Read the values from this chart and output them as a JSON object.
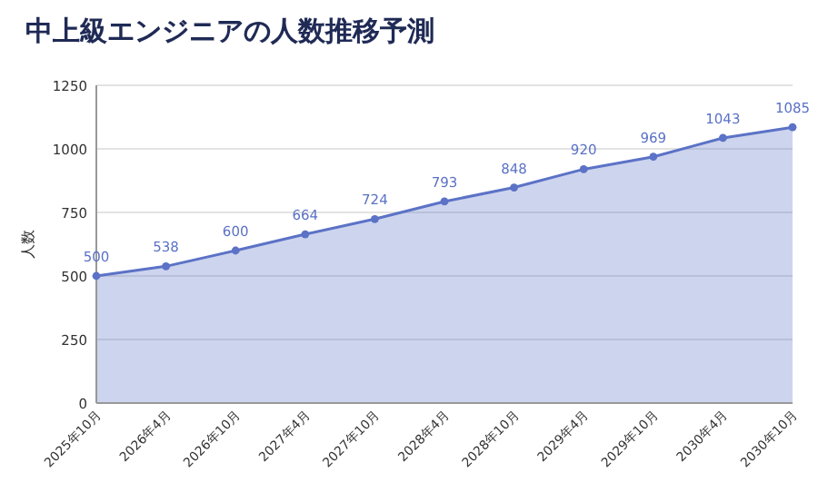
{
  "chart_data": {
    "type": "area",
    "title": "中上級エンジニアの人数推移予測",
    "ylabel": "人数",
    "categories": [
      "2025年10月",
      "2026年4月",
      "2026年10月",
      "2027年4月",
      "2027年10月",
      "2028年4月",
      "2028年10月",
      "2029年4月",
      "2029年10月",
      "2030年4月",
      "2030年10月"
    ],
    "values": [
      500,
      538,
      600,
      664,
      724,
      793,
      848,
      920,
      969,
      1043,
      1085
    ],
    "color": "#5b72c6",
    "ylim": [
      0,
      1250
    ],
    "yticks": [
      0,
      250,
      500,
      750,
      1000,
      1250
    ],
    "grid": "y",
    "marker": "circle",
    "data_labels": true
  }
}
